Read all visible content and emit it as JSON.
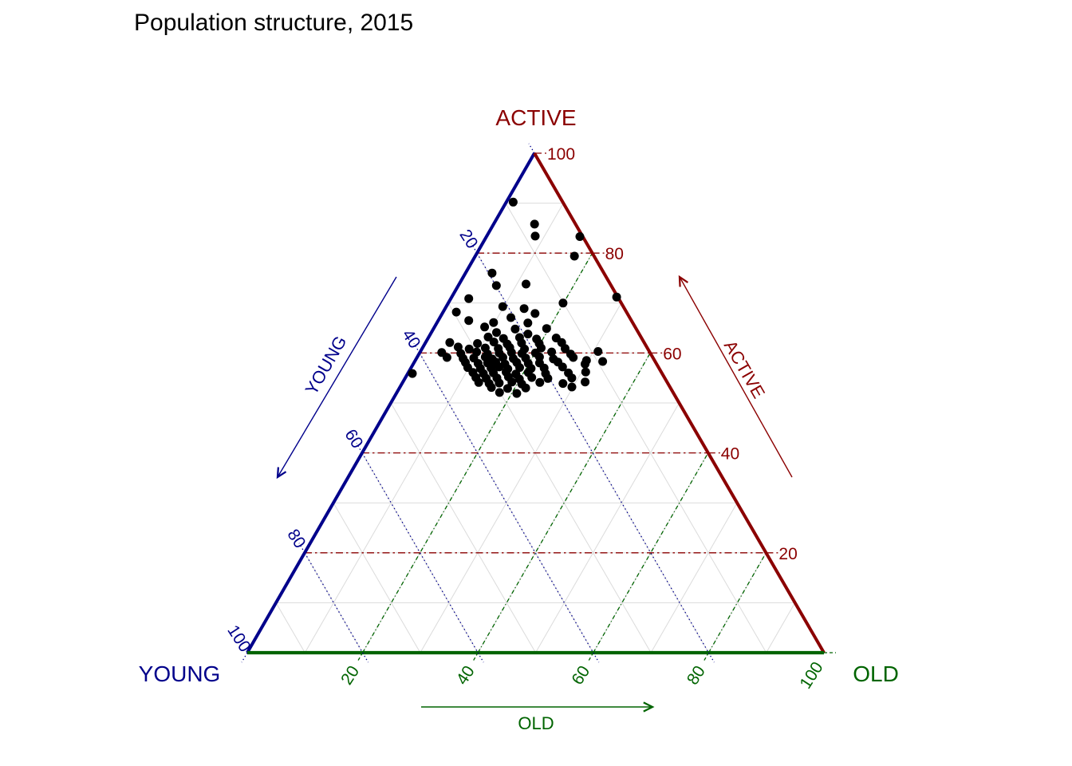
{
  "title": "Population structure, 2015",
  "axes": {
    "young": {
      "title": "YOUNG",
      "arrow_label": "YOUNG",
      "color": "#00008B",
      "tick_values": [
        20,
        40,
        60,
        80,
        100
      ]
    },
    "active": {
      "title": "ACTIVE",
      "arrow_label": "ACTIVE",
      "color": "#8B0000",
      "tick_values": [
        20,
        40,
        60,
        80,
        100
      ]
    },
    "old": {
      "title": "OLD",
      "arrow_label": "OLD",
      "color": "#006400",
      "tick_values": [
        20,
        40,
        60,
        80,
        100
      ]
    }
  },
  "grid": {
    "major_step": 20,
    "minor_step": 10,
    "minor_color": "#DBDBDB"
  },
  "point_color": "#000000",
  "chart_data": {
    "type": "scatter",
    "subtype": "ternary",
    "title": "Population structure, 2015",
    "axis_labels": {
      "left_edge": "YOUNG",
      "right_edge": "ACTIVE",
      "bottom_edge": "OLD"
    },
    "axis_range": [
      0,
      100
    ],
    "tick_interval": 20,
    "minor_grid_interval": 10,
    "points_format": "[active_pct, old_pct]; young_pct = 100 - active - old",
    "points_active_old": [
      [
        90.2,
        1.2
      ],
      [
        85.8,
        7.1
      ],
      [
        83.4,
        8.4
      ],
      [
        83.3,
        16.2
      ],
      [
        79.4,
        17.2
      ],
      [
        76.0,
        4.6
      ],
      [
        73.5,
        6.6
      ],
      [
        73.8,
        11.6
      ],
      [
        70.9,
        3.1
      ],
      [
        71.2,
        28.6
      ],
      [
        70.0,
        19.9
      ],
      [
        69.3,
        9.8
      ],
      [
        68.9,
        13.7
      ],
      [
        68.2,
        2.3
      ],
      [
        67.9,
        16.1
      ],
      [
        67.1,
        12.3
      ],
      [
        66.5,
        5.3
      ],
      [
        66.1,
        9.8
      ],
      [
        66.0,
        15.8
      ],
      [
        65.2,
        8.7
      ],
      [
        64.8,
        14.2
      ],
      [
        64.9,
        19.6
      ],
      [
        64.1,
        11.3
      ],
      [
        63.8,
        16.9
      ],
      [
        63.2,
        10.3
      ],
      [
        62.9,
        13.1
      ],
      [
        63.1,
        15.8
      ],
      [
        62.8,
        18.9
      ],
      [
        63.0,
        22.2
      ],
      [
        62.1,
        4.2
      ],
      [
        61.9,
        9.1
      ],
      [
        62.2,
        11.8
      ],
      [
        61.8,
        14.3
      ],
      [
        62.0,
        16.7
      ],
      [
        61.9,
        19.8
      ],
      [
        62.1,
        23.6
      ],
      [
        61.2,
        6.1
      ],
      [
        60.8,
        8.2
      ],
      [
        61.0,
        10.9
      ],
      [
        60.9,
        13.2
      ],
      [
        61.1,
        15.1
      ],
      [
        60.8,
        17.8
      ],
      [
        61.0,
        20.6
      ],
      [
        60.9,
        24.8
      ],
      [
        60.1,
        3.8
      ],
      [
        59.9,
        7.2
      ],
      [
        60.2,
        9.8
      ],
      [
        59.8,
        11.9
      ],
      [
        60.0,
        13.8
      ],
      [
        60.1,
        15.9
      ],
      [
        59.9,
        17.8
      ],
      [
        60.0,
        20.1
      ],
      [
        60.2,
        22.8
      ],
      [
        59.8,
        26.3
      ],
      [
        60.3,
        30.8
      ],
      [
        59.1,
        5.2
      ],
      [
        58.9,
        8.1
      ],
      [
        59.0,
        9.9
      ],
      [
        59.2,
        11.8
      ],
      [
        58.8,
        13.2
      ],
      [
        59.1,
        14.9
      ],
      [
        58.9,
        16.8
      ],
      [
        59.0,
        18.9
      ],
      [
        59.2,
        21.2
      ],
      [
        58.8,
        23.8
      ],
      [
        59.1,
        27.1
      ],
      [
        58.5,
        29.7
      ],
      [
        58.1,
        8.9
      ],
      [
        57.9,
        11.2
      ],
      [
        58.0,
        12.8
      ],
      [
        58.2,
        14.1
      ],
      [
        57.8,
        15.9
      ],
      [
        58.1,
        17.8
      ],
      [
        57.9,
        19.9
      ],
      [
        58.0,
        21.8
      ],
      [
        58.2,
        24.9
      ],
      [
        57.8,
        29.8
      ],
      [
        58.3,
        32.6
      ],
      [
        57.1,
        9.8
      ],
      [
        56.9,
        12.1
      ],
      [
        57.0,
        13.9
      ],
      [
        57.2,
        15.2
      ],
      [
        56.8,
        16.9
      ],
      [
        57.1,
        18.8
      ],
      [
        56.9,
        20.9
      ],
      [
        57.0,
        23.1
      ],
      [
        57.2,
        26.2
      ],
      [
        55.9,
        0.8
      ],
      [
        56.1,
        11.2
      ],
      [
        55.9,
        13.1
      ],
      [
        56.0,
        14.8
      ],
      [
        56.2,
        16.9
      ],
      [
        55.8,
        18.8
      ],
      [
        56.1,
        20.8
      ],
      [
        55.9,
        23.9
      ],
      [
        56.0,
        27.8
      ],
      [
        56.2,
        30.7
      ],
      [
        55.1,
        12.2
      ],
      [
        54.9,
        14.1
      ],
      [
        55.0,
        15.9
      ],
      [
        55.2,
        17.8
      ],
      [
        54.8,
        19.9
      ],
      [
        55.1,
        21.9
      ],
      [
        54.9,
        24.8
      ],
      [
        55.0,
        28.9
      ],
      [
        54.1,
        13.2
      ],
      [
        53.9,
        15.1
      ],
      [
        54.0,
        16.8
      ],
      [
        54.2,
        18.9
      ],
      [
        53.8,
        20.8
      ],
      [
        54.1,
        23.8
      ],
      [
        53.9,
        27.9
      ],
      [
        54.2,
        31.6
      ],
      [
        53.1,
        15.9
      ],
      [
        52.9,
        18.8
      ],
      [
        53.0,
        21.9
      ],
      [
        53.2,
        29.8
      ],
      [
        52.1,
        17.8
      ],
      [
        51.9,
        20.9
      ]
    ]
  }
}
